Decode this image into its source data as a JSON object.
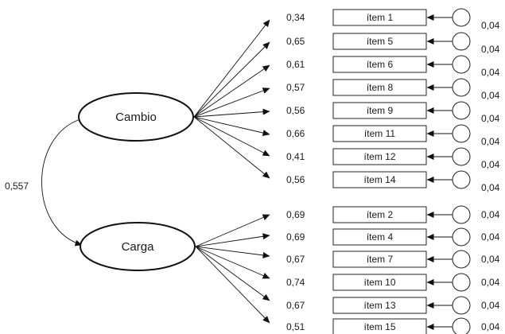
{
  "diagram": {
    "correlation": "0,557",
    "factors": [
      {
        "name": "Cambio",
        "items": [
          {
            "label": "ítem 1",
            "loading": "0,34",
            "error": "0,04"
          },
          {
            "label": "ítem 5",
            "loading": "0,65",
            "error": "0,04"
          },
          {
            "label": "ítem 6",
            "loading": "0,61",
            "error": "0,04"
          },
          {
            "label": "ítem 8",
            "loading": "0,57",
            "error": "0,04"
          },
          {
            "label": "ítem 9",
            "loading": "0,56",
            "error": "0,04"
          },
          {
            "label": "ítem 11",
            "loading": "0,66",
            "error": "0,04"
          },
          {
            "label": "ítem 12",
            "loading": "0,41",
            "error": "0,04"
          },
          {
            "label": "ítem 14",
            "loading": "0,56",
            "error": "0,04"
          }
        ]
      },
      {
        "name": "Carga",
        "items": [
          {
            "label": "ítem 2",
            "loading": "0,69",
            "error": "0,04"
          },
          {
            "label": "ítem 4",
            "loading": "0,69",
            "error": "0,04"
          },
          {
            "label": "ítem 7",
            "loading": "0,67",
            "error": "0,04"
          },
          {
            "label": "ítem 10",
            "loading": "0,74",
            "error": "0,04"
          },
          {
            "label": "ítem 13",
            "loading": "0,67",
            "error": "0,04"
          },
          {
            "label": "ítem 15",
            "loading": "0,51",
            "error": "0,04"
          }
        ]
      }
    ]
  }
}
